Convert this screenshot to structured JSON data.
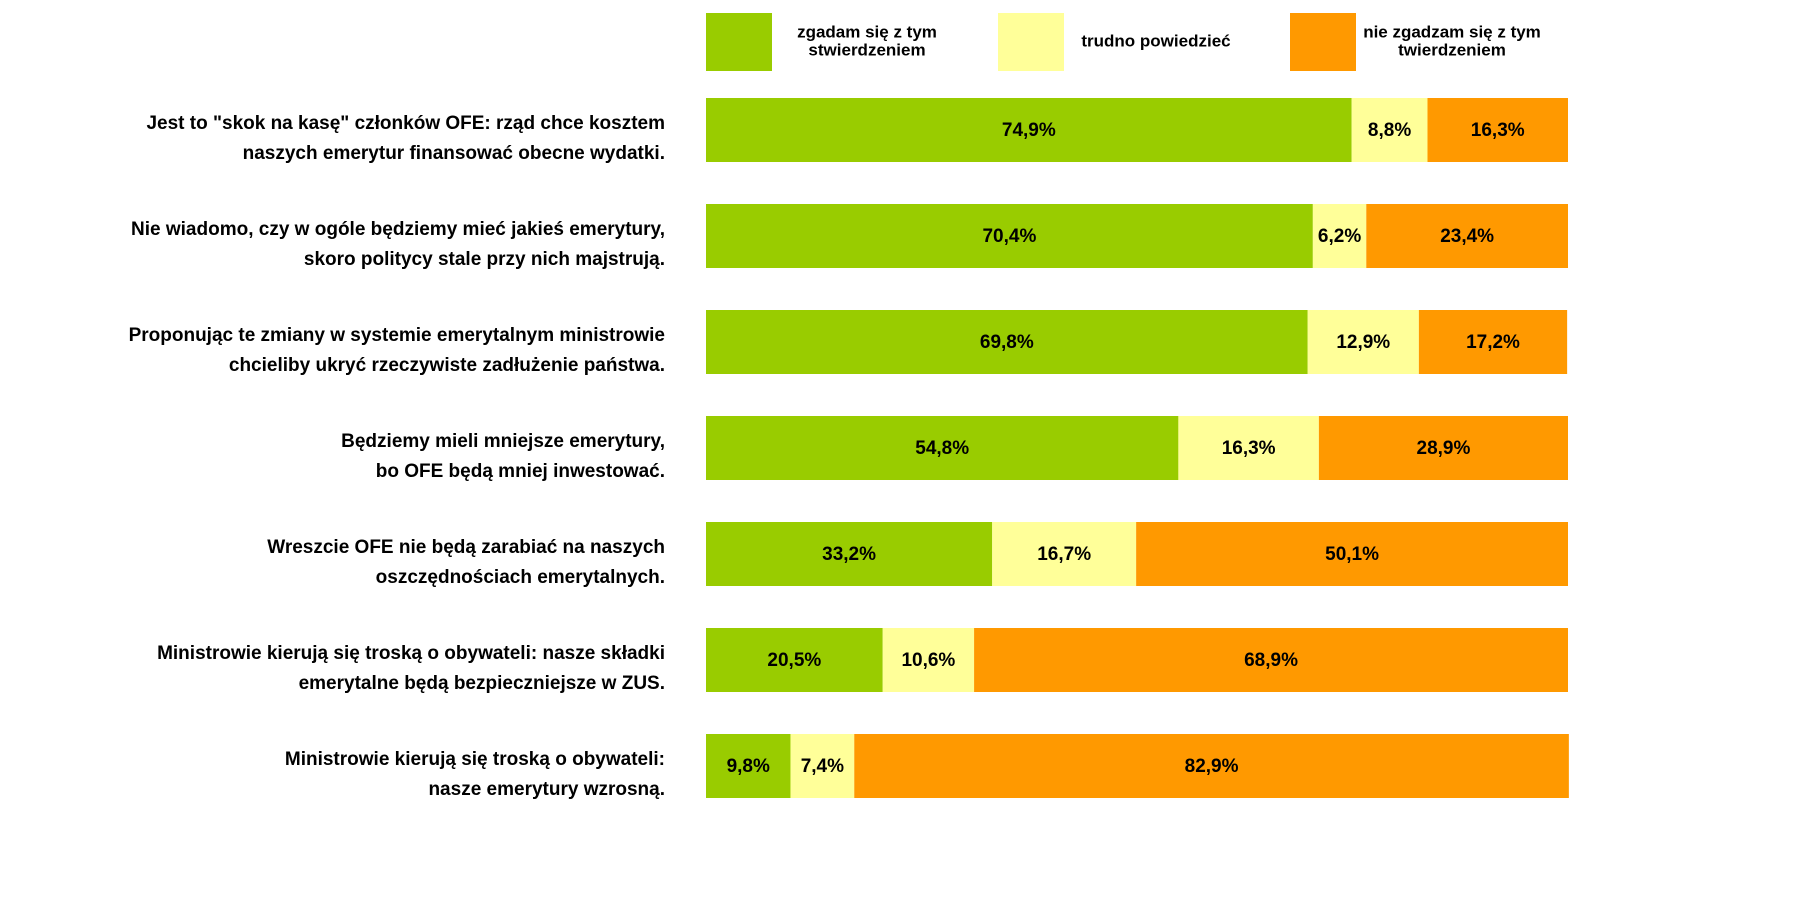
{
  "chart_data": {
    "type": "stacked_bar_horizontal",
    "categories": [
      [
        "Jest to \"skok na kasę\"  członków OFE: rząd chce kosztem",
        "naszych emerytur finansować obecne wydatki."
      ],
      [
        "Nie wiadomo, czy w ogóle będziemy mieć jakieś emerytury,",
        "skoro politycy stale przy nich majstrują."
      ],
      [
        "Proponując te zmiany w systemie emerytalnym ministrowie",
        "chcieliby ukryć rzeczywiste zadłużenie państwa."
      ],
      [
        "Będziemy mieli mniejsze emerytury,",
        "bo OFE będą mniej inwestować."
      ],
      [
        "Wreszcie OFE nie będą zarabiać na naszych",
        "oszczędnościach emerytalnych."
      ],
      [
        "Ministrowie kierują się troską o obywateli: nasze składki",
        "emerytalne będą bezpieczniejsze w ZUS."
      ],
      [
        "Ministrowie kierują się troską o obywateli:",
        "nasze emerytury wzrosną."
      ]
    ],
    "series": [
      {
        "name": [
          "zgadam się z tym",
          "stwierdzeniem"
        ],
        "color": "#99cc00",
        "values": [
          74.9,
          70.4,
          69.8,
          54.8,
          33.2,
          20.5,
          9.8
        ],
        "value_labels": [
          "74,9%",
          "70,4%",
          "69,8%",
          "54,8%",
          "33,2%",
          "20,5%",
          "9,8%"
        ]
      },
      {
        "name": [
          "trudno powiedzieć"
        ],
        "color": "#ffff99",
        "values": [
          8.8,
          6.2,
          12.9,
          16.3,
          16.7,
          10.6,
          7.4
        ],
        "value_labels": [
          "8,8%",
          "6,2%",
          "12,9%",
          "16,3%",
          "16,7%",
          "10,6%",
          "7,4%"
        ]
      },
      {
        "name": [
          "nie zgadzam się z tym",
          "twierdzeniem"
        ],
        "color": "#ff9900",
        "values": [
          16.3,
          23.4,
          17.2,
          28.9,
          50.1,
          68.9,
          82.9
        ],
        "value_labels": [
          "16,3%",
          "23,4%",
          "17,2%",
          "28,9%",
          "50,1%",
          "68,9%",
          "82,9%"
        ]
      }
    ],
    "xlim": [
      0,
      100
    ]
  }
}
